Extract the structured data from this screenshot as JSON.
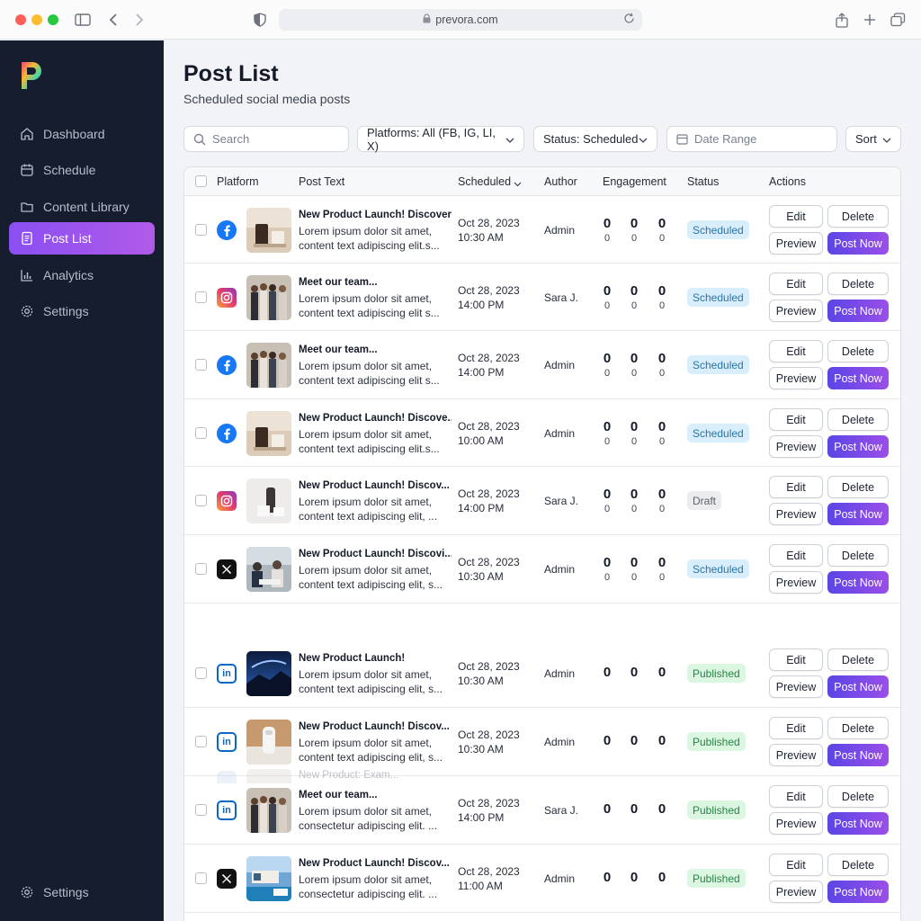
{
  "browser": {
    "url": "prevora.com",
    "icons": [
      "sidebar-toggle-icon",
      "back-icon",
      "forward-icon",
      "shield-icon",
      "lock-icon",
      "reload-icon",
      "share-icon",
      "new-tab-icon",
      "tabs-icon"
    ]
  },
  "sidebar": {
    "items": [
      {
        "label": "Dashboard",
        "icon": "home-icon"
      },
      {
        "label": "Schedule",
        "icon": "calendar-icon"
      },
      {
        "label": "Content Library",
        "icon": "folder-icon"
      },
      {
        "label": "Post List",
        "icon": "document-icon"
      },
      {
        "label": "Analytics",
        "icon": "chart-icon"
      },
      {
        "label": "Settings",
        "icon": "gear-icon"
      }
    ],
    "bottom_label": "Settings",
    "active_color": "#9b55ec",
    "background": "#161d2e"
  },
  "header": {
    "title": "Post List",
    "subtitle": "Scheduled social media posts"
  },
  "filters": {
    "search_placeholder": "Search",
    "platforms": "Platforms: All (FB, IG, LI, X)",
    "status": "Status: Scheduled",
    "date_placeholder": "Date Range",
    "sort": "Sort"
  },
  "table": {
    "columns": {
      "platform": "Platform",
      "post_text": "Post Text",
      "scheduled": "Scheduled",
      "author": "Author",
      "engagement": "Engagement",
      "status": "Status",
      "actions": "Actions"
    },
    "actions": {
      "edit": "Edit",
      "delete": "Delete",
      "preview": "Preview",
      "post_now": "Post Now"
    },
    "rows": [
      {
        "platform": "facebook",
        "thumb": "product",
        "title": "New Product Launch! Discover...",
        "line1": "Lorem ipsum dolor sit amet,",
        "line2": "content text adipiscing elit.s...",
        "date": "Oct 28, 2023",
        "time": "10:30 AM",
        "author": "Admin",
        "e1": "0",
        "e2": "0",
        "e3": "0",
        "s1": "0",
        "s2": "0",
        "s3": "0",
        "status": "Scheduled"
      },
      {
        "platform": "instagram",
        "thumb": "team",
        "title": "Meet our team...",
        "line1": "Lorem ipsum dolor sit amet,",
        "line2": "content text adipiscing elit s...",
        "date": "Oct 28, 2023",
        "time": "14:00 PM",
        "author": "Sara J.",
        "e1": "0",
        "e2": "0",
        "e3": "0",
        "s1": "0",
        "s2": "0",
        "s3": "0",
        "status": "Scheduled"
      },
      {
        "platform": "facebook",
        "thumb": "team",
        "title": "Meet our team...",
        "line1": "Lorem ipsum dolor sit amet,",
        "line2": "content text adipiscing elit s...",
        "date": "Oct 28, 2023",
        "time": "14:00 PM",
        "author": "Admin",
        "e1": "0",
        "e2": "0",
        "e3": "0",
        "s1": "0",
        "s2": "0",
        "s3": "0",
        "status": "Scheduled"
      },
      {
        "platform": "facebook",
        "thumb": "product",
        "title": "New Product Launch! Discove...",
        "line1": "Lorem ipsum dolor sit amet,",
        "line2": "content text adipiscing elit.s...",
        "date": "Oct 28, 2023",
        "time": "10:00 AM",
        "author": "Admin",
        "e1": "0",
        "e2": "0",
        "e3": "0",
        "s1": "0",
        "s2": "0",
        "s3": "0",
        "status": "Scheduled"
      },
      {
        "platform": "instagram",
        "thumb": "product-light",
        "title": "New Product Launch! Discov...",
        "line1": "Lorem ipsum dolor sit amet,",
        "line2": "content text adipiscing elit, ...",
        "date": "Oct 28, 2023",
        "time": "14:00 PM",
        "author": "Sara J.",
        "e1": "0",
        "e2": "0",
        "e3": "0",
        "s1": "0",
        "s2": "0",
        "s3": "0",
        "status": "Draft"
      },
      {
        "platform": "x",
        "thumb": "office",
        "title": "New Product Launch! Discovi...",
        "line1": "Lorem ipsum dolor sit amet,",
        "line2": "content text adipiscing elit, s...",
        "date": "Oct 28, 2023",
        "time": "10:30 AM",
        "author": "Admin",
        "e1": "0",
        "e2": "0",
        "e3": "0",
        "s1": "0",
        "s2": "0",
        "s3": "0",
        "status": "Scheduled"
      },
      {
        "platform": "linkedin",
        "thumb": "night",
        "title": "New Product Launch!",
        "line1": "Lorem ipsum dolor sit amet,",
        "line2": "content text adipiscing elit, s...",
        "date": "Oct 28, 2023",
        "time": "10:30 AM",
        "author": "Admin",
        "e1": "0",
        "e2": "0",
        "e3": "0",
        "status": "Published"
      },
      {
        "platform": "linkedin",
        "thumb": "device",
        "title": "New Product Launch! Discov...",
        "line1": "Lorem ipsum dolor sit amet,",
        "line2": "content text adipiscing elit, s...",
        "date": "Oct 28, 2023",
        "time": "10:30 AM",
        "author": "Admin",
        "e1": "0",
        "e2": "0",
        "e3": "0",
        "status": "Published"
      },
      {
        "platform": "linkedin",
        "thumb": "team",
        "title": "Meet our team...",
        "line1": "Lorem ipsum dolor sit amet,",
        "line2": "consectetur adipiscing elit. ...",
        "date": "Oct 28, 2023",
        "time": "14:00 PM",
        "author": "Sara J.",
        "e1": "0",
        "e2": "0",
        "e3": "0",
        "status": "Published"
      },
      {
        "platform": "x",
        "thumb": "pool",
        "title": "New Product Launch! Discov...",
        "line1": "Lorem ipsum dolor sit amet,",
        "line2": "consectetur adipiscing elit. ...",
        "date": "Oct 28, 2023",
        "time": "11:00 AM",
        "author": "Admin",
        "e1": "0",
        "e2": "0",
        "e3": "0",
        "status": "Published"
      }
    ],
    "ghost_row_text": "New Product: Exam..."
  }
}
